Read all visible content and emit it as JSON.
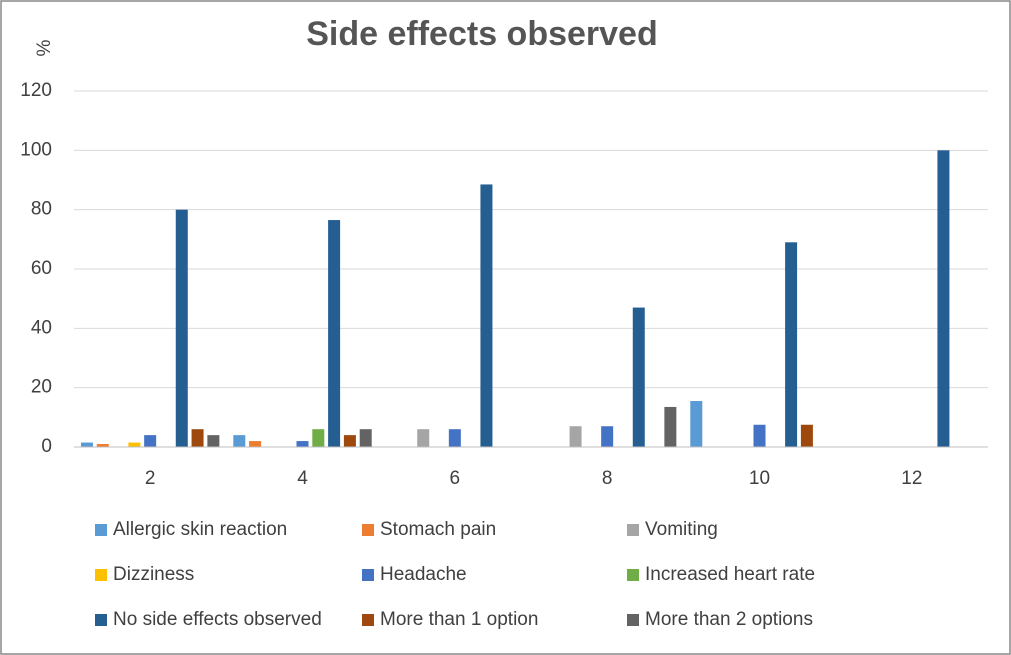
{
  "chart_data": {
    "type": "bar",
    "title": "Side effects observed",
    "y_label": "%",
    "categories": [
      "2",
      "4",
      "6",
      "8",
      "10",
      "12"
    ],
    "series": [
      {
        "name": "Allergic skin reaction",
        "color": "#5b9bd5",
        "values": [
          1.5,
          4,
          0,
          0,
          15.5,
          0
        ]
      },
      {
        "name": "Stomach pain",
        "color": "#ed7d31",
        "values": [
          1,
          2,
          0,
          0,
          0,
          0
        ]
      },
      {
        "name": "Vomiting",
        "color": "#a5a5a5",
        "values": [
          0,
          0,
          6,
          7,
          0,
          0
        ]
      },
      {
        "name": "Dizziness",
        "color": "#ffc000",
        "values": [
          1.5,
          0,
          0,
          0,
          0,
          0
        ]
      },
      {
        "name": "Headache",
        "color": "#4472c4",
        "values": [
          4,
          2,
          6,
          7,
          7.5,
          0
        ]
      },
      {
        "name": "Increased heart rate",
        "color": "#70ad47",
        "values": [
          0,
          6,
          0,
          0,
          0,
          0
        ]
      },
      {
        "name": "No side effects observed",
        "color": "#255e91",
        "values": [
          80,
          76.5,
          88.5,
          47,
          69,
          100
        ]
      },
      {
        "name": "More than 1 option",
        "color": "#9e480e",
        "values": [
          6,
          4,
          0,
          0,
          7.5,
          0
        ]
      },
      {
        "name": "More than 2 options",
        "color": "#636363",
        "values": [
          4,
          6,
          0,
          13.5,
          0,
          0
        ]
      }
    ],
    "ylim": [
      0,
      120
    ],
    "yticks": [
      0,
      20,
      40,
      60,
      80,
      100,
      120
    ],
    "grid": true
  }
}
